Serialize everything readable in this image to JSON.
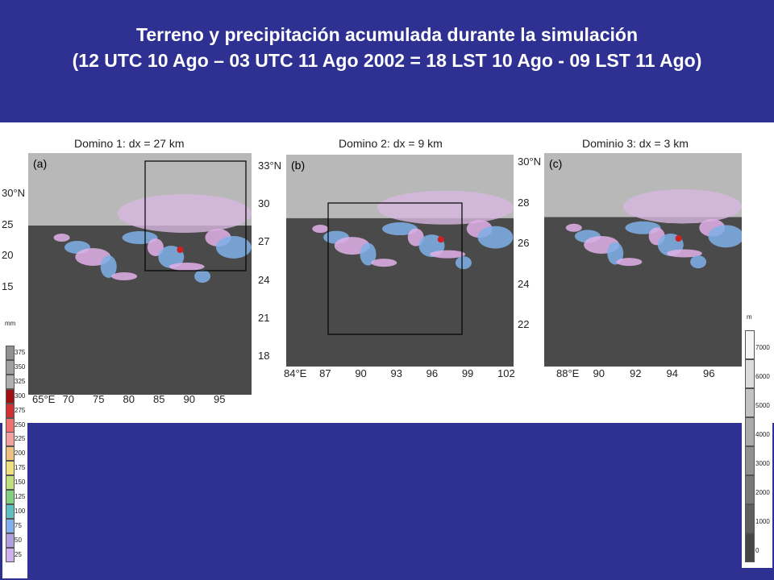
{
  "header": {
    "title_line1": "Terreno y precipitación acumulada durante la simulación",
    "title_line2": "(12 UTC 10 Ago – 03 UTC 11 Ago 2002 = 18 LST 10 Ago - 09 LST 11 Ago)"
  },
  "panels": [
    {
      "label": "Domino 1: dx = 27 km",
      "tag": "(a)",
      "lat_labels": [
        "30°N",
        "25",
        "20",
        "15"
      ],
      "lon_labels": [
        "65°E",
        "70",
        "75",
        "80",
        "85",
        "90",
        "95"
      ]
    },
    {
      "label": "Domino 2: dx = 9 km",
      "tag": "(b)",
      "lat_labels": [
        "33°N",
        "30",
        "27",
        "24",
        "21",
        "18"
      ],
      "lon_labels": [
        "84°E",
        "87",
        "90",
        "93",
        "96",
        "99",
        "102"
      ]
    },
    {
      "label": "Dominio 3: dx = 3 km",
      "tag": "(c)",
      "lat_labels": [
        "30°N",
        "28",
        "26",
        "24",
        "22"
      ],
      "lon_labels": [
        "88°E",
        "90",
        "92",
        "94",
        "96"
      ]
    }
  ],
  "precip_legend": {
    "unit": "mm",
    "labels": [
      "375",
      "350",
      "325",
      "300",
      "275",
      "250",
      "225",
      "200",
      "175",
      "150",
      "125",
      "100",
      "75",
      "50",
      "25"
    ]
  },
  "terrain_legend": {
    "unit": "m",
    "labels": [
      "7000",
      "6000",
      "5000",
      "4000",
      "3000",
      "2000",
      "1000",
      "0"
    ]
  }
}
